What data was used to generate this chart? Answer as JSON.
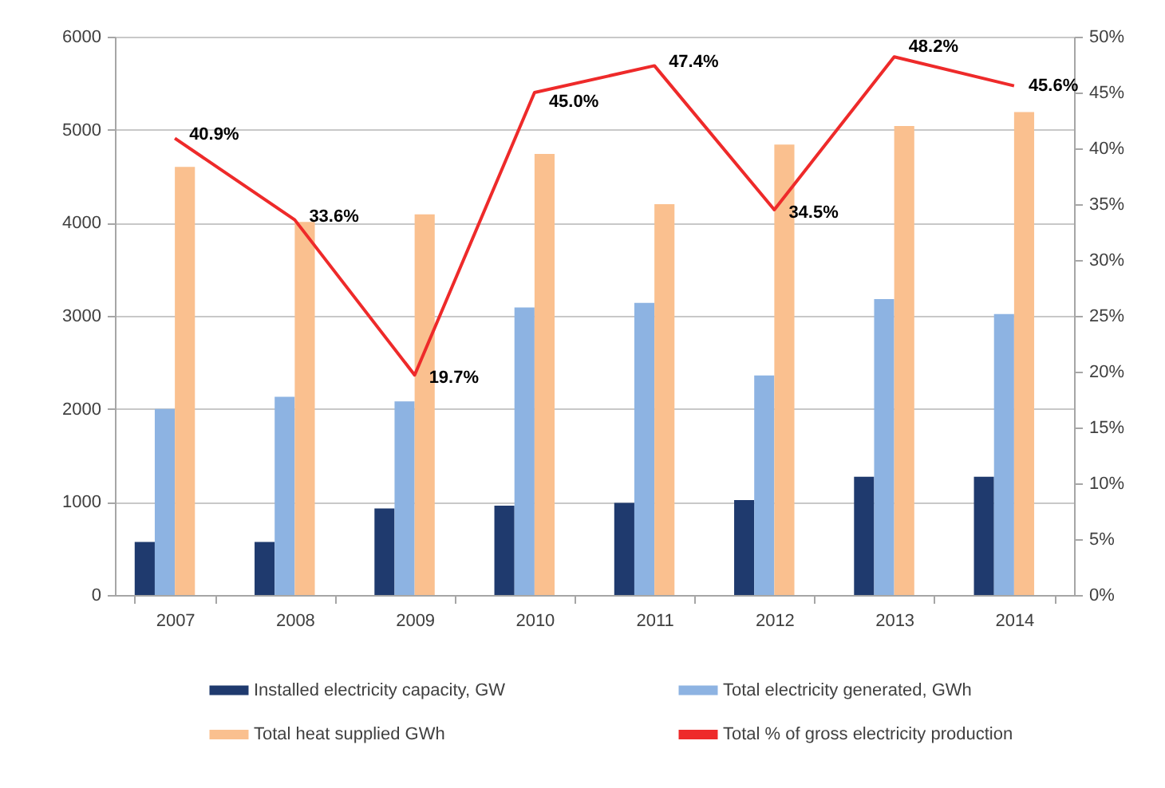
{
  "chart_data": {
    "type": "bar",
    "categories": [
      "2007",
      "2008",
      "2009",
      "2010",
      "2011",
      "2012",
      "2013",
      "2014"
    ],
    "series": [
      {
        "name": "Installed electricity capacity, GW",
        "color": "#1f3a6e",
        "values": [
          570,
          570,
          930,
          960,
          990,
          1020,
          1270,
          1270
        ]
      },
      {
        "name": "Total electricity generated, GWh",
        "color": "#8db3e2",
        "values": [
          2000,
          2130,
          2080,
          3090,
          3140,
          2360,
          3180,
          3020
        ]
      },
      {
        "name": "Total heat supplied GWh",
        "color": "#fac08f",
        "values": [
          4600,
          4010,
          4090,
          4740,
          4200,
          4840,
          5040,
          5190
        ]
      },
      {
        "name": "Total % of gross electricity production",
        "type": "line",
        "axis": "y2",
        "color": "#ee2a2a",
        "values": [
          40.9,
          33.6,
          19.7,
          45.0,
          47.4,
          34.5,
          48.2,
          45.6
        ],
        "value_labels": [
          "40.9%",
          "33.6%",
          "19.7%",
          "45.0%",
          "47.4%",
          "34.5%",
          "48.2%",
          "45.6%"
        ]
      }
    ],
    "ylim": [
      0,
      6000
    ],
    "yticks": [
      0,
      1000,
      2000,
      3000,
      4000,
      5000,
      6000
    ],
    "y2lim": [
      0,
      50
    ],
    "y2ticks": [
      {
        "value": 0,
        "label": "0%"
      },
      {
        "value": 5,
        "label": "5%"
      },
      {
        "value": 10,
        "label": "10%"
      },
      {
        "value": 15,
        "label": "15%"
      },
      {
        "value": 20,
        "label": "20%"
      },
      {
        "value": 25,
        "label": "25%"
      },
      {
        "value": 30,
        "label": "30%"
      },
      {
        "value": 35,
        "label": "35%"
      },
      {
        "value": 40,
        "label": "40%"
      },
      {
        "value": 45,
        "label": "45%"
      },
      {
        "value": 50,
        "label": "50%"
      }
    ],
    "grid": "y",
    "legend": "bottom",
    "line_style": "solid"
  }
}
